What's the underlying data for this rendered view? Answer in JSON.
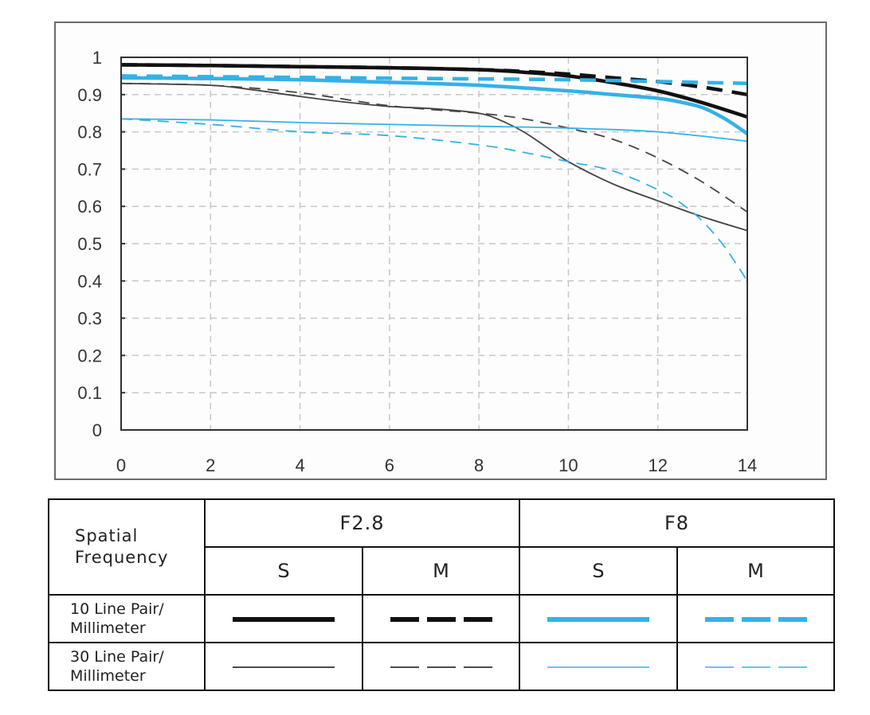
{
  "chart_data": {
    "type": "line",
    "title": "",
    "xlabel": "",
    "ylabel": "",
    "xlim": [
      0,
      14
    ],
    "ylim": [
      0,
      1
    ],
    "grid": true,
    "x_ticks": [
      "0",
      "2",
      "4",
      "6",
      "8",
      "10",
      "12",
      "14"
    ],
    "y_ticks": [
      "0",
      "0.1",
      "0.2",
      "0.3",
      "0.4",
      "0.5",
      "0.6",
      "0.7",
      "0.8",
      "0.9",
      "1"
    ],
    "series": [
      {
        "name": "F2.8 S 10 Line Pair/Millimeter",
        "color": "#111111",
        "style": "solid",
        "weight": "thick",
        "x": [
          0,
          2,
          4,
          6,
          8,
          9,
          10,
          11,
          12,
          13,
          14
        ],
        "y": [
          0.98,
          0.978,
          0.975,
          0.972,
          0.967,
          0.96,
          0.95,
          0.932,
          0.91,
          0.878,
          0.84
        ]
      },
      {
        "name": "F2.8 M 10 Line Pair/Millimeter",
        "color": "#111111",
        "style": "dashed",
        "weight": "thick",
        "x": [
          0,
          2,
          4,
          6,
          8,
          9,
          10,
          11,
          12,
          13,
          14
        ],
        "y": [
          0.98,
          0.978,
          0.975,
          0.972,
          0.967,
          0.962,
          0.955,
          0.945,
          0.935,
          0.92,
          0.9
        ]
      },
      {
        "name": "F8 S 10 Line Pair/Millimeter",
        "color": "#33b2e5",
        "style": "solid",
        "weight": "thick",
        "x": [
          0,
          2,
          4,
          6,
          8,
          10,
          11,
          12,
          12.5,
          13,
          13.5,
          14
        ],
        "y": [
          0.945,
          0.943,
          0.94,
          0.933,
          0.925,
          0.91,
          0.9,
          0.89,
          0.88,
          0.865,
          0.835,
          0.795
        ]
      },
      {
        "name": "F8 M 10 Line Pair/Millimeter",
        "color": "#33b2e5",
        "style": "dashed",
        "weight": "thick",
        "x": [
          0,
          2,
          4,
          6,
          8,
          10,
          12,
          14
        ],
        "y": [
          0.95,
          0.948,
          0.946,
          0.944,
          0.942,
          0.94,
          0.935,
          0.93
        ]
      },
      {
        "name": "F2.8 S 30 Line Pair/Millimeter",
        "color": "#444444",
        "style": "solid",
        "weight": "thin",
        "x": [
          0,
          2,
          3,
          4,
          5,
          6,
          7,
          8,
          8.5,
          9,
          9.5,
          10,
          11,
          12,
          13,
          14
        ],
        "y": [
          0.93,
          0.925,
          0.912,
          0.895,
          0.88,
          0.868,
          0.862,
          0.85,
          0.83,
          0.8,
          0.76,
          0.72,
          0.66,
          0.615,
          0.572,
          0.535
        ]
      },
      {
        "name": "F2.8 M 30 Line Pair/Millimeter",
        "color": "#444444",
        "style": "dashed",
        "weight": "thin",
        "x": [
          0,
          2,
          4,
          6,
          8,
          9,
          10,
          11,
          12,
          13,
          14
        ],
        "y": [
          0.93,
          0.925,
          0.905,
          0.87,
          0.85,
          0.835,
          0.81,
          0.78,
          0.73,
          0.665,
          0.585
        ]
      },
      {
        "name": "F8 S 30 Line Pair/Millimeter",
        "color": "#33b2e5",
        "style": "solid",
        "weight": "thin",
        "x": [
          0,
          2,
          4,
          6,
          8,
          10,
          12,
          14
        ],
        "y": [
          0.835,
          0.832,
          0.825,
          0.82,
          0.815,
          0.81,
          0.8,
          0.775
        ]
      },
      {
        "name": "F8 M 30 Line Pair/Millimeter",
        "color": "#33b2e5",
        "style": "dashed",
        "weight": "thin",
        "x": [
          0,
          2,
          4,
          6,
          8,
          9,
          10,
          11,
          12,
          12.5,
          13,
          13.5,
          14
        ],
        "y": [
          0.835,
          0.82,
          0.8,
          0.79,
          0.765,
          0.745,
          0.72,
          0.695,
          0.645,
          0.61,
          0.56,
          0.49,
          0.4
        ]
      }
    ]
  },
  "legend": {
    "row_header": "Spatial Frequency",
    "row_header_line1": "Spatial",
    "row_header_line2": "Frequency",
    "apertures": [
      "F2.8",
      "F8"
    ],
    "columns": [
      "S",
      "M",
      "S",
      "M"
    ],
    "rows": [
      {
        "line1": "10 Line Pair/",
        "line2": "Millimeter"
      },
      {
        "line1": "30 Line Pair/",
        "line2": "Millimeter"
      }
    ],
    "colors": {
      "black": "#111111",
      "blue": "#33b2e5"
    }
  }
}
